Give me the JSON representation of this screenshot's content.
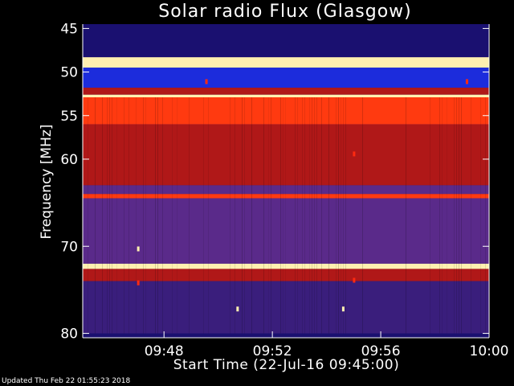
{
  "chart_data": {
    "type": "heatmap",
    "title": "Solar radio Flux (Glasgow)",
    "xlabel": "Start Time (22-Jul-16 09:45:00)",
    "ylabel": "Frequency [MHz]",
    "x_range": [
      "09:45",
      "10:00"
    ],
    "x_ticks": [
      "09:48",
      "09:52",
      "09:56",
      "10:00"
    ],
    "x_tick_values": [
      "09:48",
      "09:52",
      "09:56",
      "10:00"
    ],
    "y_range": [
      44.5,
      80.5
    ],
    "y_ticks": [
      45,
      50,
      55,
      60,
      70,
      80
    ],
    "y_inverted": true,
    "color_map": {
      "low": "#1a1070",
      "mid_low": "#5a2a8a",
      "mid": "#b01818",
      "high": "#ff3a10",
      "peak": "#fff0b0"
    },
    "bands_mhz": [
      {
        "from": 45.0,
        "to": 48.3,
        "intensity": "low-blue"
      },
      {
        "from": 48.3,
        "to": 49.5,
        "intensity": "peak"
      },
      {
        "from": 49.5,
        "to": 51.8,
        "intensity": "blue"
      },
      {
        "from": 51.8,
        "to": 52.6,
        "intensity": "mid"
      },
      {
        "from": 52.6,
        "to": 52.9,
        "intensity": "peak"
      },
      {
        "from": 52.9,
        "to": 56.0,
        "intensity": "high"
      },
      {
        "from": 56.0,
        "to": 63.0,
        "intensity": "mid"
      },
      {
        "from": 63.0,
        "to": 64.0,
        "intensity": "mid-purple"
      },
      {
        "from": 64.0,
        "to": 64.5,
        "intensity": "high"
      },
      {
        "from": 64.5,
        "to": 72.0,
        "intensity": "mid-purple"
      },
      {
        "from": 72.0,
        "to": 72.6,
        "intensity": "peak"
      },
      {
        "from": 72.6,
        "to": 74.0,
        "intensity": "mid"
      },
      {
        "from": 74.0,
        "to": 80.0,
        "intensity": "low-purple"
      }
    ],
    "bursts": [
      {
        "time": "09:47:03",
        "freq_mhz": 70.3,
        "intensity": "peak"
      },
      {
        "time": "09:47:03",
        "freq_mhz": 74.2,
        "intensity": "high"
      },
      {
        "time": "09:55:01",
        "freq_mhz": 59.4,
        "intensity": "high"
      },
      {
        "time": "09:55:01",
        "freq_mhz": 73.9,
        "intensity": "high"
      },
      {
        "time": "09:50:43",
        "freq_mhz": 77.2,
        "intensity": "peak"
      },
      {
        "time": "09:54:37",
        "freq_mhz": 77.2,
        "intensity": "peak"
      },
      {
        "time": "09:49:34",
        "freq_mhz": 51.1,
        "intensity": "high"
      },
      {
        "time": "09:59:11",
        "freq_mhz": 51.1,
        "intensity": "high"
      }
    ]
  },
  "footer": "Updated Thu Feb 22 01:55:23 2018"
}
